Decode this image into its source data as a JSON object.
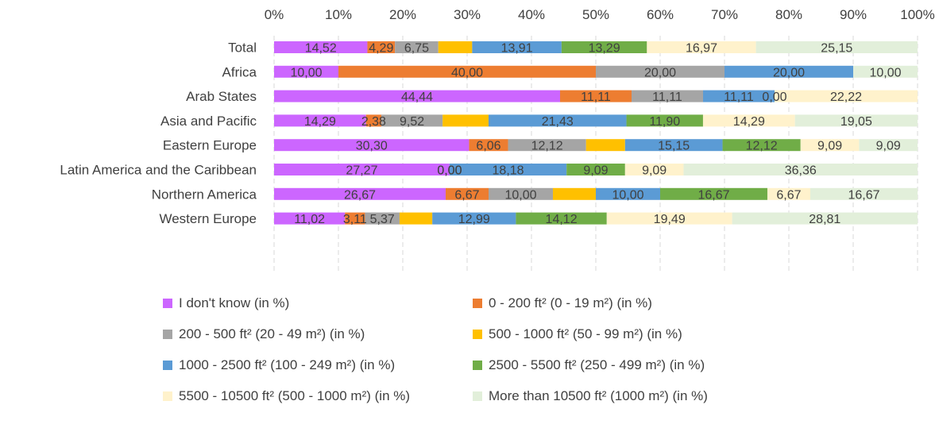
{
  "chart_data": {
    "type": "bar",
    "orientation": "horizontal",
    "stacked": "percent",
    "title": "",
    "xlabel": "",
    "ylabel": "",
    "xlim": [
      0,
      100
    ],
    "x_ticks": [
      "0%",
      "10%",
      "20%",
      "30%",
      "40%",
      "50%",
      "60%",
      "70%",
      "80%",
      "90%",
      "100%"
    ],
    "x_axis_position": "top",
    "grid": "vertical-dashed",
    "legend_position": "bottom",
    "categories": [
      "Total",
      "Africa",
      "Arab States",
      "Asia and Pacific",
      "Eastern Europe",
      "Latin America and the Caribbean",
      "Northern America",
      "Western Europe"
    ],
    "series": [
      {
        "name": "I don't know (in %)",
        "color": "#CC66FF",
        "values": [
          14.52,
          10.0,
          44.44,
          14.29,
          30.3,
          27.27,
          26.67,
          11.02
        ],
        "labels": [
          "14,52",
          "10,00",
          "44,44",
          "14,29",
          "30,30",
          "27,27",
          "26,67",
          "11,02"
        ]
      },
      {
        "name": "0 - 200 ft² (0 - 19 m²) (in %)",
        "color": "#ED7D31",
        "values": [
          4.29,
          40.0,
          11.11,
          2.38,
          6.06,
          0.0,
          6.67,
          3.11
        ],
        "labels": [
          "4,29",
          "40,00",
          "11,11",
          "2,38",
          "6,06",
          "0,00",
          "6,67",
          "3,11"
        ]
      },
      {
        "name": "200 - 500 ft² (20 - 49 m²) (in %)",
        "color": "#A5A5A5",
        "values": [
          6.75,
          20.0,
          11.11,
          9.52,
          12.12,
          0.0,
          10.0,
          5.37
        ],
        "labels": [
          "6,75",
          "20,00",
          "11,11",
          "9,52",
          "12,12",
          "0,00",
          "10,00",
          "5,37"
        ]
      },
      {
        "name": "500 - 1000 ft² (50 - 99 m²) (in %)",
        "color": "#FFC000",
        "values": [
          5.27,
          0,
          0,
          7.14,
          6.06,
          0,
          6.67,
          5.09
        ],
        "labels": [
          "",
          "",
          "",
          "",
          "",
          "",
          "",
          ""
        ]
      },
      {
        "name": "1000 - 2500 ft² (100 - 249 m²) (in %)",
        "color": "#5B9BD5",
        "values": [
          13.91,
          20.0,
          11.11,
          21.43,
          15.15,
          18.18,
          10.0,
          12.99
        ],
        "labels": [
          "13,91",
          "20,00",
          "11,11",
          "21,43",
          "15,15",
          "18,18",
          "10,00",
          "12,99"
        ]
      },
      {
        "name": "2500 - 5500 ft² (250 - 499 m²) (in %)",
        "color": "#70AD47",
        "values": [
          13.29,
          0,
          0,
          11.9,
          12.12,
          9.09,
          16.67,
          14.12
        ],
        "labels": [
          "13,29",
          "",
          "0,00",
          "11,90",
          "12,12",
          "9,09",
          "16,67",
          "14,12"
        ]
      },
      {
        "name": "5500 - 10500 ft² (500 - 1000 m²) (in %)",
        "color": "#FFF2CC",
        "values": [
          16.97,
          0,
          22.22,
          14.29,
          9.09,
          9.09,
          6.67,
          19.49
        ],
        "labels": [
          "16,97",
          "",
          "22,22",
          "14,29",
          "9,09",
          "9,09",
          "6,67",
          "19,49"
        ]
      },
      {
        "name": "More than 10500 ft² (1000 m²) (in %)",
        "color": "#E2EFDA",
        "values": [
          25.15,
          10.0,
          0,
          19.05,
          9.09,
          36.36,
          16.67,
          28.81
        ],
        "labels": [
          "25,15",
          "10,00",
          "",
          "19,05",
          "9,09",
          "36,36",
          "16,67",
          "28,81"
        ]
      }
    ]
  }
}
